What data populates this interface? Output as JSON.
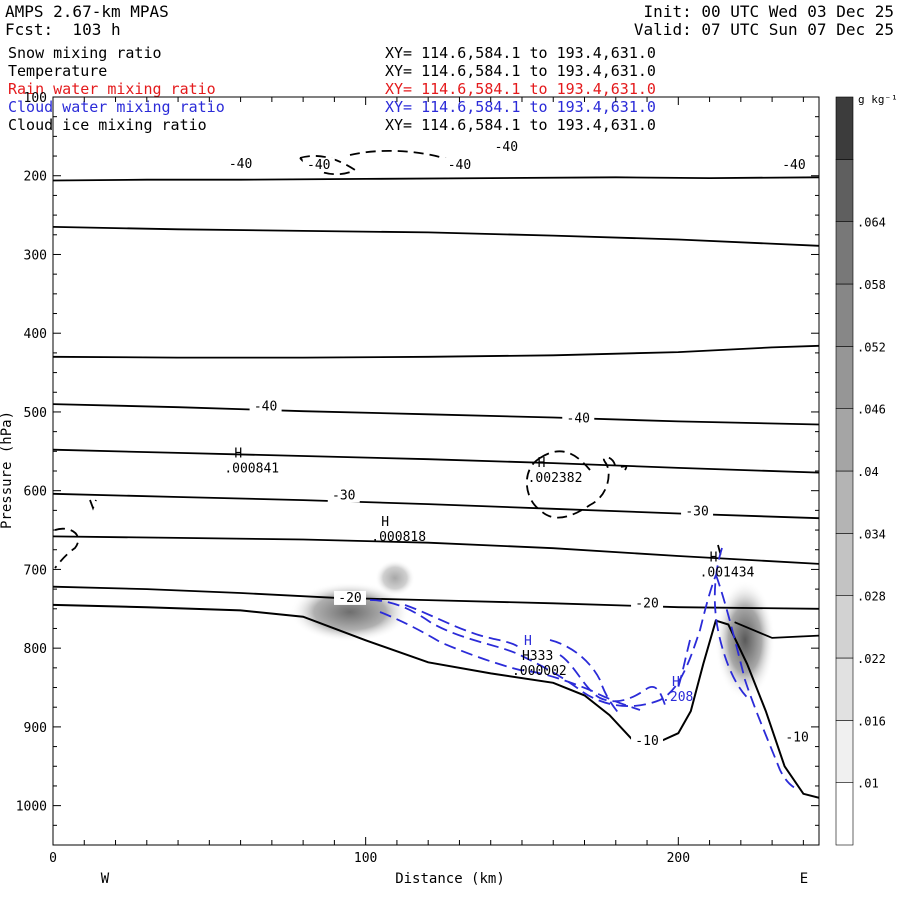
{
  "header": {
    "model": "AMPS 2.67-km MPAS",
    "forecast": "Fcst:  103 h",
    "init": "Init: 00 UTC Wed 03 Dec 25",
    "valid": "Valid: 07 UTC Sun 07 Dec 25",
    "fields": [
      {
        "name": "Snow mixing ratio",
        "xy": "XY= 114.6,584.1 to 193.4,631.0",
        "color": "#000000"
      },
      {
        "name": "Temperature",
        "xy": "XY= 114.6,584.1 to 193.4,631.0",
        "color": "#000000"
      },
      {
        "name": "Rain water mixing ratio",
        "xy": "XY= 114.6,584.1 to 193.4,631.0",
        "color": "#e41a1c"
      },
      {
        "name": "Cloud water mixing ratio",
        "xy": "XY= 114.6,584.1 to 193.4,631.0",
        "color": "#2b2bd8"
      },
      {
        "name": "Cloud ice mixing ratio",
        "xy": "XY= 114.6,584.1 to 193.4,631.0",
        "color": "#000000"
      }
    ]
  },
  "chart_data": {
    "type": "contour cross-section",
    "xlabel": "Distance (km)",
    "ylabel": "Pressure (hPa)",
    "xlim": [
      0,
      245
    ],
    "ylim": [
      1050,
      100
    ],
    "x_ticks": [
      0,
      100,
      200
    ],
    "y_ticks": [
      100,
      200,
      300,
      400,
      500,
      600,
      700,
      800,
      900,
      1000
    ],
    "west_label": "W",
    "east_label": "E",
    "colorbar": {
      "unit": "g kg⁻¹",
      "levels": [
        ".01",
        ".016",
        ".022",
        ".028",
        ".034",
        ".04",
        ".046",
        ".052",
        ".058",
        ".064"
      ],
      "colors": [
        "#ffffff",
        "#f0f0f0",
        "#e1e1e1",
        "#d2d2d2",
        "#c3c3c3",
        "#b4b4b4",
        "#a5a5a5",
        "#969696",
        "#878787",
        "#787878",
        "#5f5f5f",
        "#3c3c3c"
      ]
    },
    "temperature_isotherms": [
      {
        "label": "-40",
        "points": [
          [
            0,
            206
          ],
          [
            30,
            205
          ],
          [
            60,
            205
          ],
          [
            100,
            204
          ],
          [
            140,
            203
          ],
          [
            180,
            202
          ],
          [
            210,
            203
          ],
          [
            245,
            202
          ]
        ]
      },
      {
        "label": "",
        "points": [
          [
            0,
            265
          ],
          [
            40,
            268
          ],
          [
            80,
            270
          ],
          [
            120,
            272
          ],
          [
            160,
            276
          ],
          [
            200,
            281
          ],
          [
            245,
            289
          ]
        ]
      },
      {
        "label": "",
        "points": [
          [
            0,
            430
          ],
          [
            40,
            431
          ],
          [
            80,
            431
          ],
          [
            120,
            430
          ],
          [
            160,
            428
          ],
          [
            200,
            424
          ],
          [
            230,
            418
          ],
          [
            245,
            416
          ]
        ]
      },
      {
        "label": "-40",
        "points": [
          [
            0,
            490
          ],
          [
            40,
            494
          ],
          [
            80,
            499
          ],
          [
            120,
            503
          ],
          [
            160,
            507
          ],
          [
            200,
            512
          ],
          [
            245,
            516
          ]
        ]
      },
      {
        "label": "",
        "points": [
          [
            0,
            548
          ],
          [
            40,
            552
          ],
          [
            80,
            556
          ],
          [
            120,
            560
          ],
          [
            160,
            565
          ],
          [
            200,
            571
          ],
          [
            245,
            577
          ]
        ]
      },
      {
        "label": "-30",
        "points": [
          [
            0,
            604
          ],
          [
            40,
            608
          ],
          [
            80,
            612
          ],
          [
            120,
            617
          ],
          [
            160,
            623
          ],
          [
            200,
            629
          ],
          [
            245,
            635
          ]
        ]
      },
      {
        "label": "",
        "points": [
          [
            0,
            658
          ],
          [
            40,
            660
          ],
          [
            80,
            662
          ],
          [
            120,
            666
          ],
          [
            160,
            673
          ],
          [
            200,
            683
          ],
          [
            245,
            693
          ]
        ]
      },
      {
        "label": "-20",
        "points": [
          [
            0,
            722
          ],
          [
            30,
            725
          ],
          [
            60,
            730
          ],
          [
            90,
            736
          ],
          [
            120,
            739
          ],
          [
            160,
            743
          ],
          [
            200,
            748
          ],
          [
            245,
            750
          ]
        ]
      },
      {
        "label": "-10",
        "points": [
          [
            218,
            767
          ],
          [
            230,
            787
          ],
          [
            245,
            784
          ]
        ]
      }
    ],
    "terrain": [
      [
        0,
        745
      ],
      [
        30,
        748
      ],
      [
        60,
        752
      ],
      [
        80,
        760
      ],
      [
        100,
        790
      ],
      [
        120,
        818
      ],
      [
        140,
        832
      ],
      [
        160,
        844
      ],
      [
        170,
        860
      ],
      [
        178,
        885
      ],
      [
        185,
        915
      ],
      [
        195,
        917
      ],
      [
        200,
        908
      ],
      [
        204,
        880
      ],
      [
        208,
        820
      ],
      [
        212,
        765
      ],
      [
        216,
        770
      ],
      [
        222,
        820
      ],
      [
        228,
        880
      ],
      [
        234,
        950
      ],
      [
        240,
        985
      ],
      [
        245,
        990
      ]
    ],
    "maxima_labels": [
      {
        "label": "H",
        "value": ".000841",
        "x": 58,
        "p": 558
      },
      {
        "label": "H",
        "value": ".000818",
        "x": 105,
        "p": 645
      },
      {
        "label": "H",
        "value": ".002382",
        "x": 155,
        "p": 570
      },
      {
        "label": "H",
        "value": ".001434",
        "x": 210,
        "p": 690
      },
      {
        "label": "H333",
        "value": ".000002",
        "x": 150,
        "p": 815
      },
      {
        "label": "H",
        "value": ".208",
        "x": 198,
        "p": 848
      }
    ],
    "isotherm_labels": [
      {
        "value": "-40",
        "x": 60,
        "p": 189
      },
      {
        "value": "-40",
        "x": 85,
        "p": 190
      },
      {
        "value": "-40",
        "x": 130,
        "p": 190
      },
      {
        "value": "-40",
        "x": 145,
        "p": 167
      },
      {
        "value": "-40",
        "x": 237,
        "p": 190
      },
      {
        "value": "-40",
        "x": 68,
        "p": 497
      },
      {
        "value": "-40",
        "x": 168,
        "p": 512
      },
      {
        "value": "-30",
        "x": 93,
        "p": 610
      },
      {
        "value": "-30",
        "x": 206,
        "p": 630
      },
      {
        "value": "-20",
        "x": 95,
        "p": 740
      },
      {
        "value": "-20",
        "x": 190,
        "p": 747
      },
      {
        "value": "-10",
        "x": 238,
        "p": 917
      },
      {
        "value": "-10",
        "x": 190,
        "p": 922
      }
    ]
  }
}
